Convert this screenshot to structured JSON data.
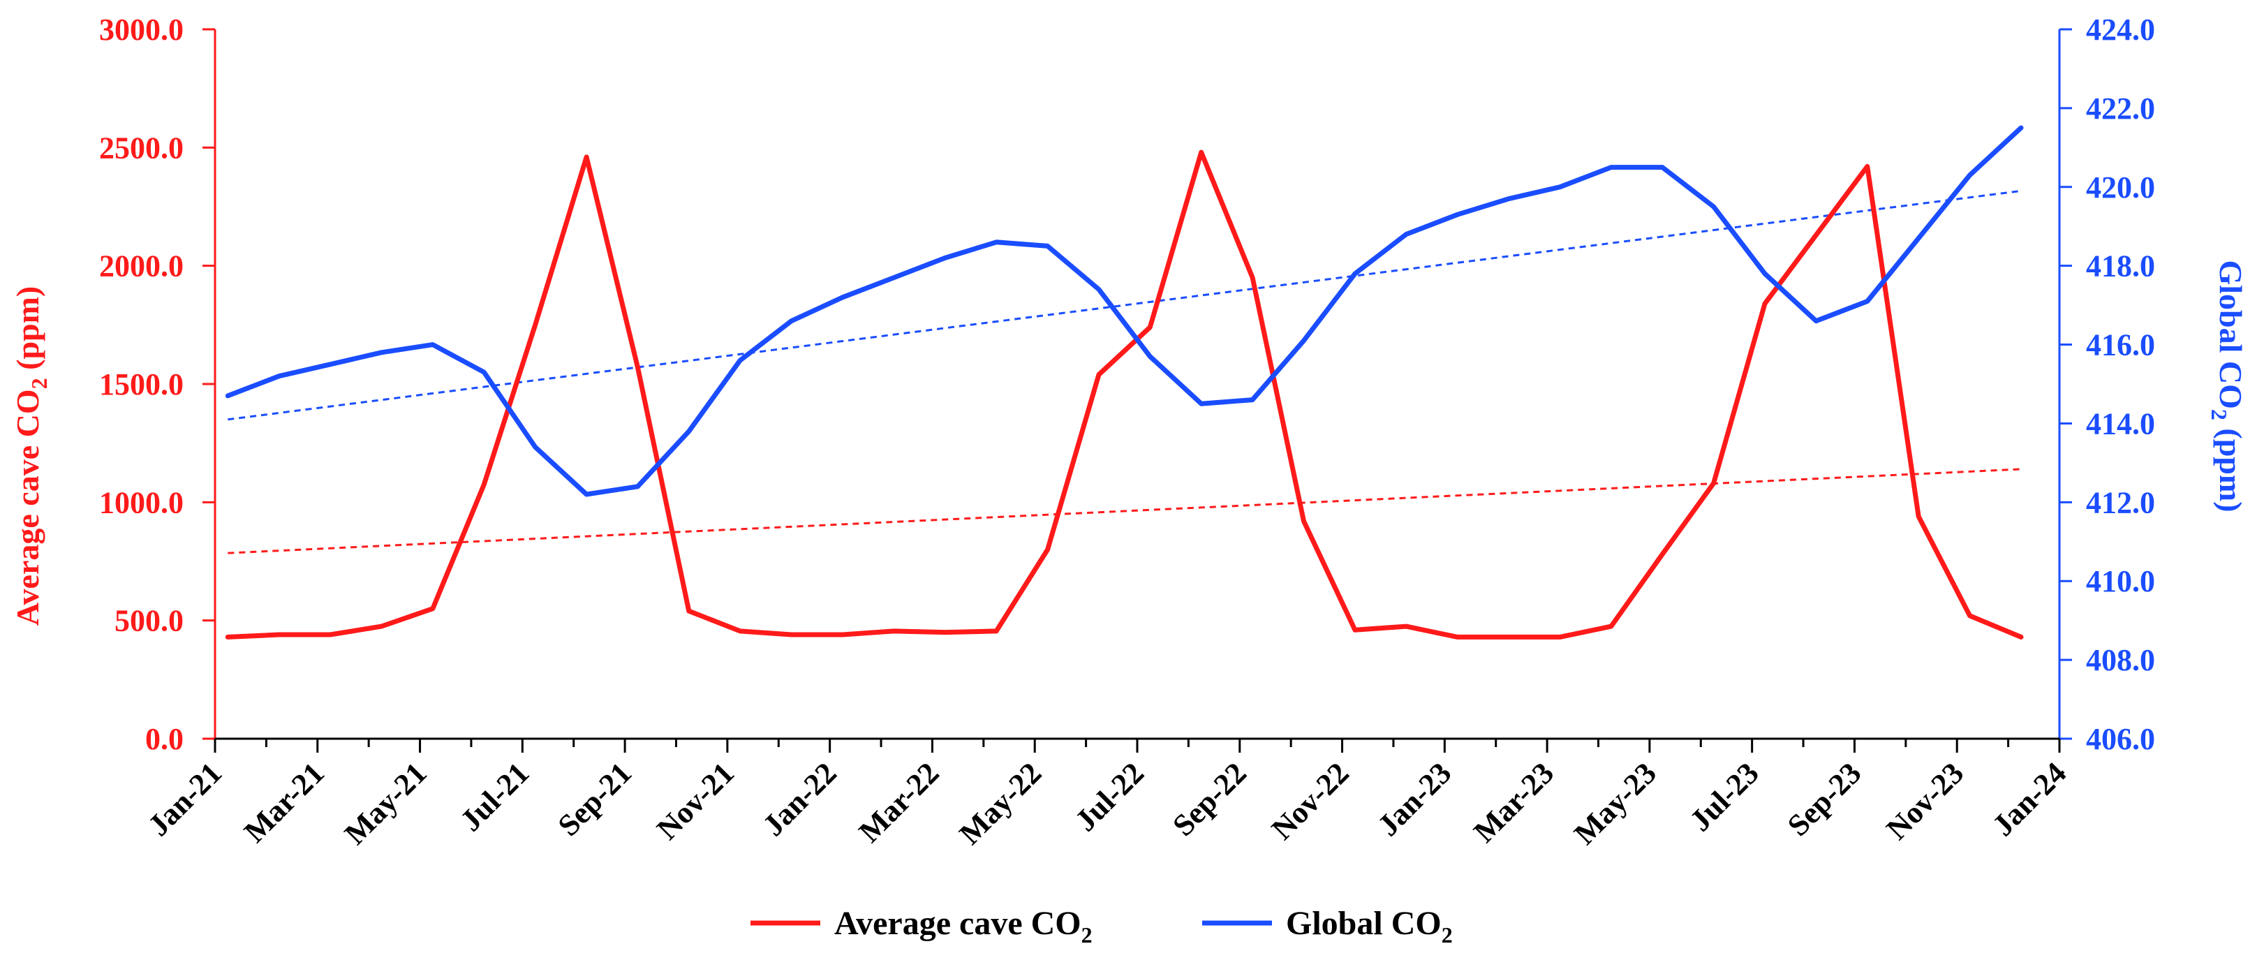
{
  "chart_data": {
    "type": "line",
    "title": "",
    "xlabel": "",
    "ylabel": "Average cave CO",
    "ylabel_subscript": "2",
    "ylabel_suffix": " (ppm)",
    "y2label": "Global CO",
    "y2label_subscript": "2",
    "y2label_suffix": " (ppm)",
    "ylim": [
      0,
      3000
    ],
    "y2lim": [
      406,
      424
    ],
    "yticks": [
      "0.0",
      "500.0",
      "1000.0",
      "1500.0",
      "2000.0",
      "2500.0",
      "3000.0"
    ],
    "y2ticks": [
      "406.0",
      "408.0",
      "410.0",
      "412.0",
      "414.0",
      "416.0",
      "418.0",
      "420.0",
      "422.0",
      "424.0"
    ],
    "xticks": [
      "Jan-21",
      "Mar-21",
      "May-21",
      "Jul-21",
      "Sep-21",
      "Nov-21",
      "Jan-22",
      "Mar-22",
      "May-22",
      "Jul-22",
      "Sep-22",
      "Nov-22",
      "Jan-23",
      "Mar-23",
      "May-23",
      "Jul-23",
      "Sep-23",
      "Nov-23",
      "Jan-24"
    ],
    "x_range_months": [
      0,
      36
    ],
    "x_start_offset_months": 0.25,
    "grid": false,
    "legend_position": "bottom-center",
    "series": [
      {
        "name": "Average cave CO",
        "name_subscript": "2",
        "axis": "left",
        "color": "#ff1a1a",
        "values": [
          430,
          440,
          440,
          475,
          550,
          1075,
          1750,
          2460,
          1570,
          540,
          455,
          440,
          440,
          455,
          450,
          455,
          800,
          1540,
          1740,
          2480,
          1950,
          920,
          460,
          475,
          430,
          430,
          430,
          475,
          780,
          1080,
          1840,
          2130,
          2420,
          940,
          520,
          430
        ]
      },
      {
        "name": "Global CO",
        "name_subscript": "2",
        "axis": "right",
        "color": "#1a4dff",
        "values": [
          414.7,
          415.2,
          415.5,
          415.8,
          416.0,
          415.3,
          413.4,
          412.2,
          412.4,
          413.8,
          415.6,
          416.6,
          417.2,
          417.7,
          418.2,
          418.6,
          418.5,
          417.4,
          415.7,
          414.5,
          414.6,
          416.1,
          417.8,
          418.8,
          419.3,
          419.7,
          420.0,
          420.5,
          420.5,
          419.5,
          417.8,
          416.6,
          417.1,
          418.7,
          420.3,
          421.5
        ]
      }
    ],
    "trendlines": [
      {
        "series": "Average cave CO",
        "axis": "left",
        "color": "#ff1a1a",
        "start": 785,
        "end": 1140,
        "style": "dashed"
      },
      {
        "series": "Global CO",
        "axis": "right",
        "color": "#1a4dff",
        "start": 414.1,
        "end": 419.9,
        "style": "dashed"
      }
    ]
  }
}
